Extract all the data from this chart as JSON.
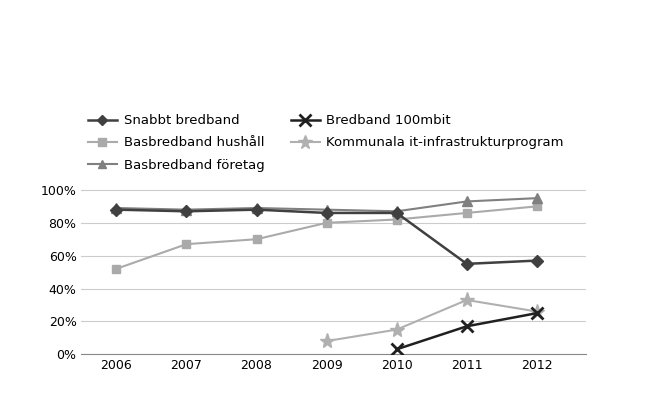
{
  "series_order": [
    "Snabbt bredband",
    "Basbredband hushåll",
    "Basbredband företag",
    "Bredband 100mbit",
    "Kommunala it-infrastrukturprogram"
  ],
  "series": {
    "Snabbt bredband": {
      "x": [
        2006,
        2007,
        2008,
        2009,
        2010,
        2011,
        2012
      ],
      "y": [
        0.88,
        0.87,
        0.88,
        0.86,
        0.86,
        0.55,
        0.57
      ],
      "color": "#404040",
      "marker": "D",
      "markersize": 6,
      "linewidth": 1.8,
      "zorder": 5,
      "markerfacecolor": "#404040",
      "markeredgecolor": "#404040",
      "markeredgewidth": 1.0
    },
    "Basbredband hushåll": {
      "x": [
        2006,
        2007,
        2008,
        2009,
        2010,
        2011,
        2012
      ],
      "y": [
        0.52,
        0.67,
        0.7,
        0.8,
        0.82,
        0.86,
        0.9
      ],
      "color": "#aaaaaa",
      "marker": "s",
      "markersize": 6,
      "linewidth": 1.5,
      "zorder": 4,
      "markerfacecolor": "#aaaaaa",
      "markeredgecolor": "#aaaaaa",
      "markeredgewidth": 1.0
    },
    "Basbredband företag": {
      "x": [
        2006,
        2007,
        2008,
        2009,
        2010,
        2011,
        2012
      ],
      "y": [
        0.89,
        0.88,
        0.89,
        0.88,
        0.87,
        0.93,
        0.95
      ],
      "color": "#808080",
      "marker": "^",
      "markersize": 7,
      "linewidth": 1.5,
      "zorder": 4,
      "markerfacecolor": "#808080",
      "markeredgecolor": "#808080",
      "markeredgewidth": 1.0
    },
    "Bredband 100mbit": {
      "x": [
        2010,
        2011,
        2012
      ],
      "y": [
        0.03,
        0.17,
        0.25
      ],
      "color": "#202020",
      "marker": "x",
      "markersize": 9,
      "linewidth": 1.8,
      "zorder": 5,
      "markerfacecolor": "none",
      "markeredgecolor": "#202020",
      "markeredgewidth": 2.0
    },
    "Kommunala it-infrastrukturprogram": {
      "x": [
        2009,
        2010,
        2011,
        2012
      ],
      "y": [
        0.08,
        0.15,
        0.33,
        0.26
      ],
      "color": "#b0b0b0",
      "marker": "*",
      "markersize": 11,
      "linewidth": 1.5,
      "zorder": 3,
      "markerfacecolor": "#b0b0b0",
      "markeredgecolor": "#b0b0b0",
      "markeredgewidth": 1.0
    }
  },
  "ylim": [
    0,
    1.05
  ],
  "yticks": [
    0.0,
    0.2,
    0.4,
    0.6,
    0.8,
    1.0
  ],
  "ytick_labels": [
    "0%",
    "20%",
    "40%",
    "60%",
    "80%",
    "100%"
  ],
  "xlim": [
    2005.5,
    2012.7
  ],
  "xticks": [
    2006,
    2007,
    2008,
    2009,
    2010,
    2011,
    2012
  ],
  "grid_color": "#cccccc",
  "background_color": "#ffffff",
  "legend_ncol": 2,
  "legend_fontsize": 9.5,
  "tick_fontsize": 9
}
